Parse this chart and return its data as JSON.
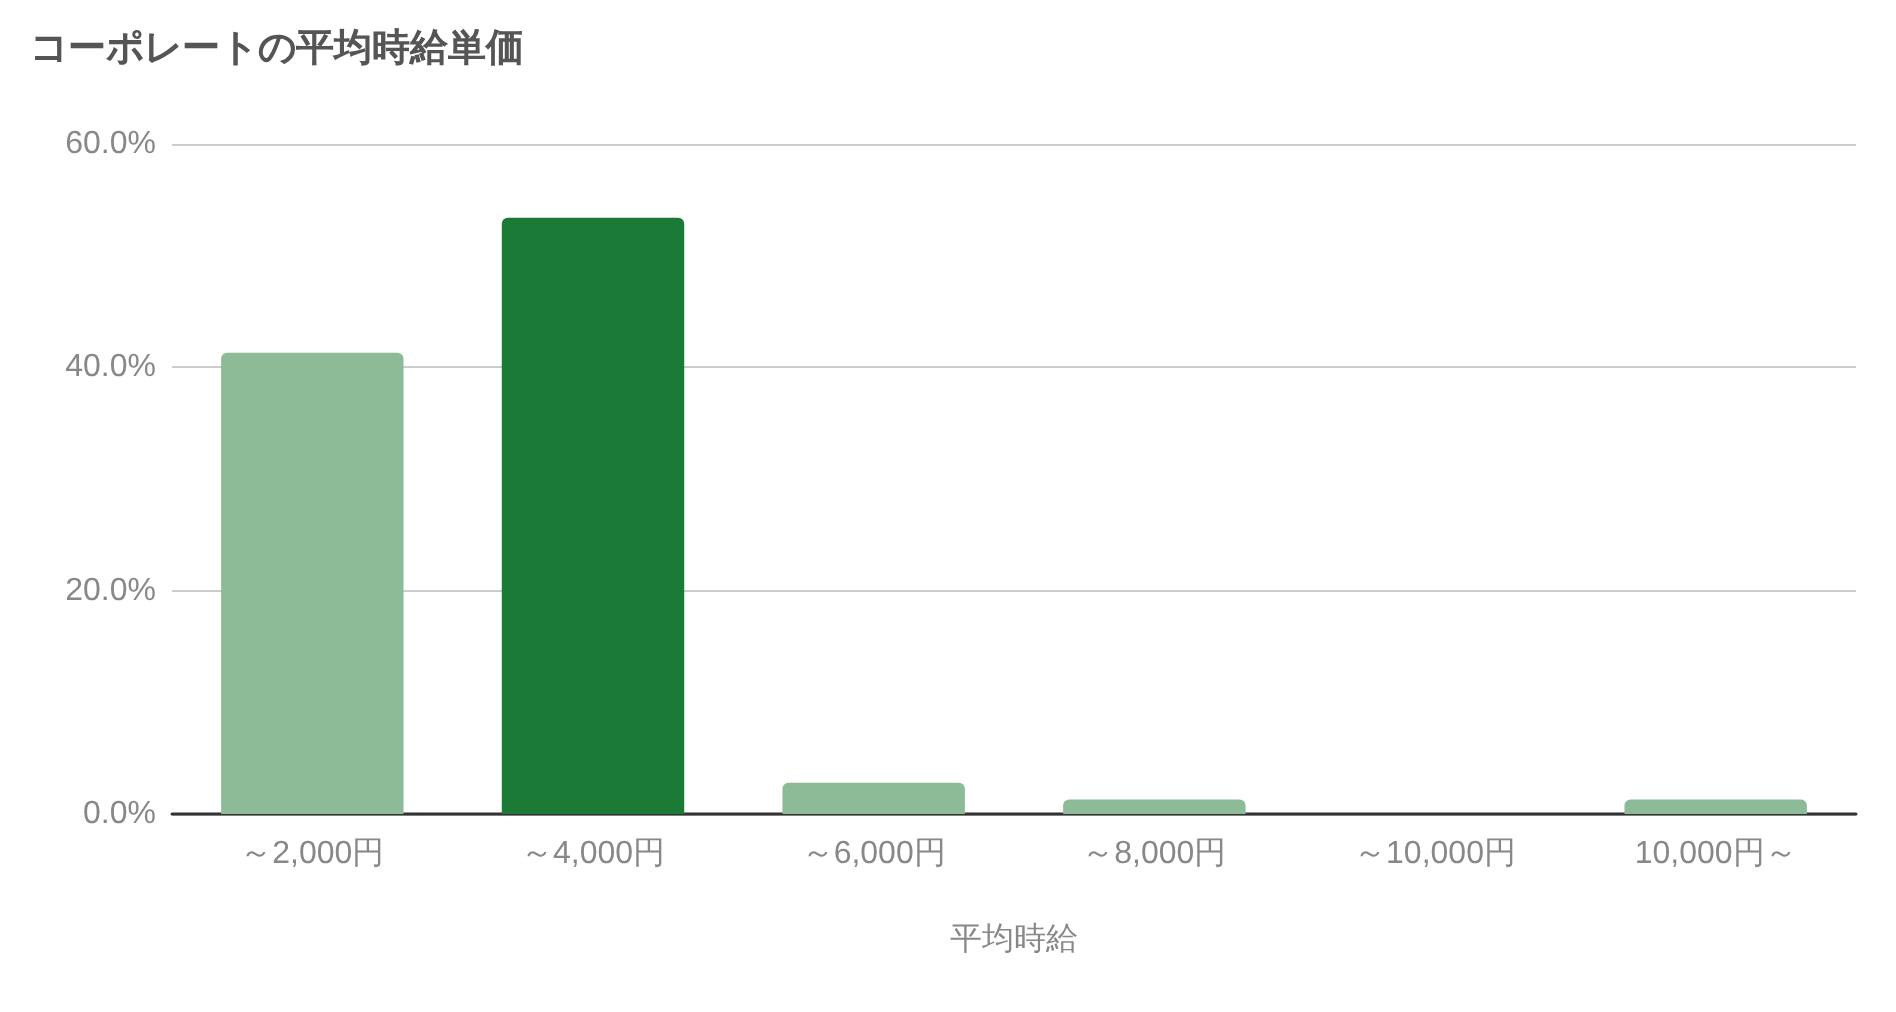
{
  "chart_data": {
    "type": "bar",
    "title": "コーポレートの平均時給単価",
    "xlabel": "平均時給",
    "categories": [
      "～2,000円",
      "～4,000円",
      "～6,000円",
      "～8,000円",
      "～10,000円",
      "10,000円～"
    ],
    "values": [
      41.3,
      53.4,
      2.8,
      1.3,
      0,
      1.3
    ],
    "colors": [
      "#8dbb98",
      "#1b7a36",
      "#8dbb98",
      "#8dbb98",
      "#8dbb98",
      "#8dbb98"
    ],
    "ylim": [
      0,
      60
    ],
    "yticks": [
      {
        "value": 0,
        "label": "0.0%"
      },
      {
        "value": 20,
        "label": "20.0%"
      },
      {
        "value": 40,
        "label": "40.0%"
      },
      {
        "value": 60,
        "label": "60.0%"
      }
    ],
    "grid": "y"
  }
}
